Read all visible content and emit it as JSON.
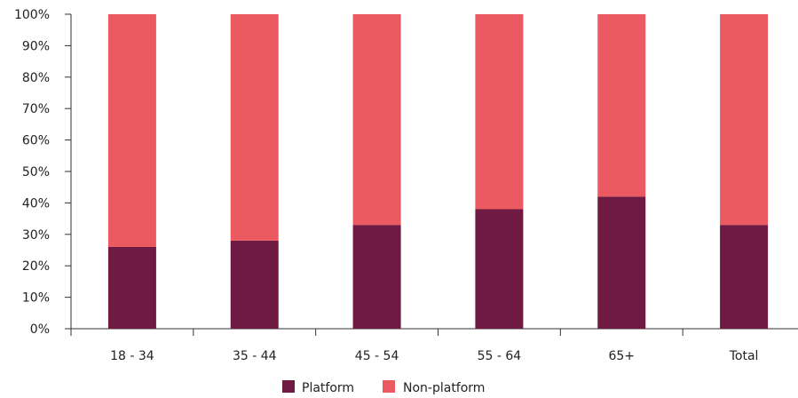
{
  "chart_data": {
    "type": "bar",
    "stacked": true,
    "categories": [
      "18 - 34",
      "35 - 44",
      "45 - 54",
      "55 - 64",
      "65+",
      "Total"
    ],
    "series": [
      {
        "name": "Platform",
        "values": [
          26,
          28,
          33,
          38,
          42,
          33
        ],
        "color": "#6e1a42"
      },
      {
        "name": "Non-platform",
        "values": [
          74,
          72,
          67,
          62,
          58,
          67
        ],
        "color": "#ea5a60"
      }
    ],
    "y_ticks": [
      "0%",
      "10%",
      "20%",
      "30%",
      "40%",
      "50%",
      "60%",
      "70%",
      "80%",
      "90%",
      "100%"
    ],
    "ylim": [
      0,
      100
    ],
    "grid": false,
    "legend_position": "bottom"
  }
}
